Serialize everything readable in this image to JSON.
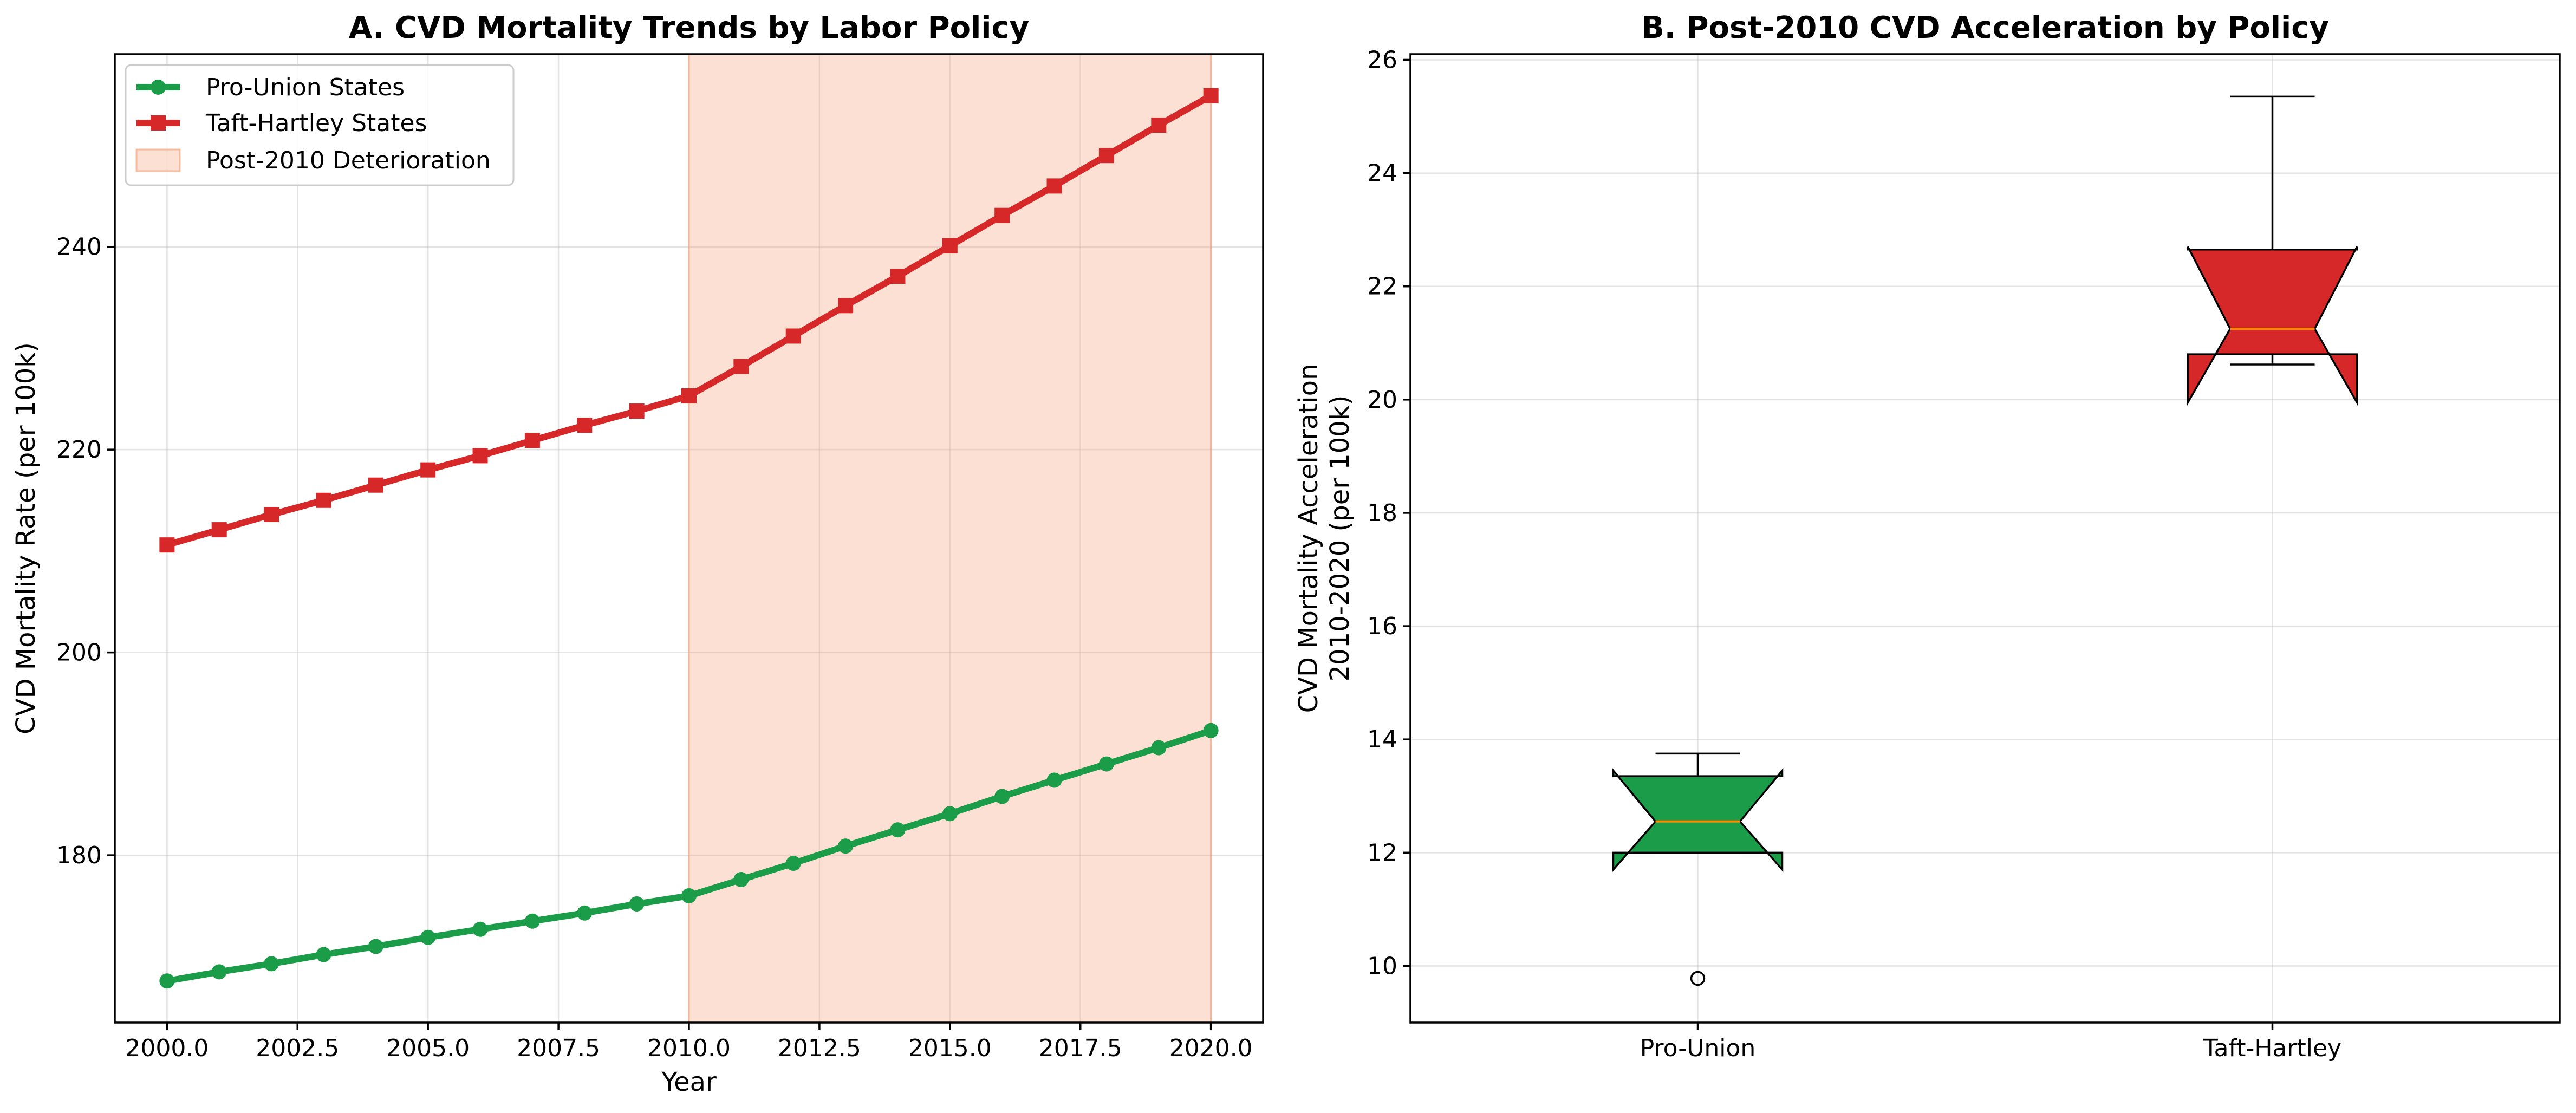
{
  "chart_data": [
    {
      "type": "line",
      "title": "A. CVD Mortality Trends by Labor Policy",
      "xlabel": "Year",
      "ylabel": "CVD Mortality Rate (per 100k)",
      "xlim": [
        1999.0,
        2021.0
      ],
      "ylim": [
        163.5,
        259.0
      ],
      "xticks": [
        "2000.0",
        "2002.5",
        "2005.0",
        "2007.5",
        "2010.0",
        "2012.5",
        "2015.0",
        "2017.5",
        "2020.0"
      ],
      "yticks": [
        "180",
        "200",
        "220",
        "240"
      ],
      "x": [
        2000,
        2001,
        2002,
        2003,
        2004,
        2005,
        2006,
        2007,
        2008,
        2009,
        2010,
        2011,
        2012,
        2013,
        2014,
        2015,
        2016,
        2017,
        2018,
        2019,
        2020
      ],
      "series": [
        {
          "name": "Pro-Union States",
          "color": "#1a9c48",
          "marker": "circle",
          "values": [
            167.6,
            168.5,
            169.3,
            170.2,
            171.0,
            171.9,
            172.7,
            173.5,
            174.3,
            175.2,
            176.0,
            177.6,
            179.2,
            180.9,
            182.5,
            184.1,
            185.8,
            187.4,
            189.0,
            190.6,
            192.3
          ]
        },
        {
          "name": "Taft-Hartley States",
          "color": "#d62828",
          "marker": "square",
          "values": [
            210.6,
            212.1,
            213.6,
            215.0,
            216.5,
            218.0,
            219.4,
            220.9,
            222.4,
            223.8,
            225.3,
            228.2,
            231.2,
            234.2,
            237.1,
            240.1,
            243.1,
            246.0,
            249.0,
            252.0,
            254.9
          ]
        }
      ],
      "shaded_region": {
        "name": "Post-2010 Deterioration",
        "x_start": 2010,
        "x_end": 2020,
        "color": "#f4a582"
      },
      "legend_position": "upper-left",
      "grid": true
    },
    {
      "type": "box",
      "title": "B. Post-2010 CVD Acceleration by Policy",
      "ylabel": "CVD Mortality Acceleration\n2010-2020 (per 100k)",
      "ylim": [
        9.0,
        26.1
      ],
      "yticks": [
        "10",
        "12",
        "14",
        "16",
        "18",
        "20",
        "22",
        "24",
        "26"
      ],
      "notched": true,
      "categories": [
        "Pro-Union",
        "Taft-Hartley"
      ],
      "boxes": [
        {
          "label": "Pro-Union",
          "color": "#1a9c48",
          "whisker_low": 12.0,
          "q1": 12.0,
          "median": 12.55,
          "q3": 13.35,
          "whisker_high": 13.75,
          "notch_low": 11.7,
          "notch_high": 13.45,
          "outliers": [
            9.78
          ]
        },
        {
          "label": "Taft-Hartley",
          "color": "#d62828",
          "whisker_low": 20.62,
          "q1": 20.8,
          "median": 21.25,
          "q3": 22.65,
          "whisker_high": 25.35,
          "notch_low": 19.95,
          "notch_high": 22.7,
          "outliers": []
        }
      ],
      "median_color": "#ff8c00",
      "grid": true
    }
  ]
}
